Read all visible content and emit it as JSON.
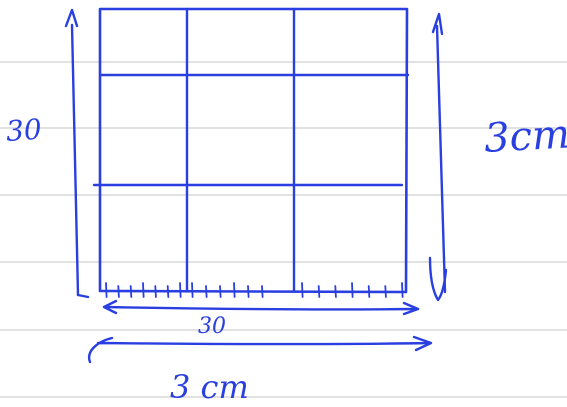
{
  "note": {
    "ink_color": "#2a3fe0",
    "rule_color": "#d0d0d0",
    "paper_color": "#ffffff"
  },
  "grid": {
    "rows": 3,
    "columns": 3
  },
  "labels": {
    "left_side": "30",
    "right_side": "3cm",
    "bottom_inner": "30",
    "bottom_outer": "3 cm"
  },
  "ruler_tick_groups": [
    {
      "ticks": 7
    },
    {
      "ticks": 6
    },
    {
      "ticks": 7
    }
  ]
}
